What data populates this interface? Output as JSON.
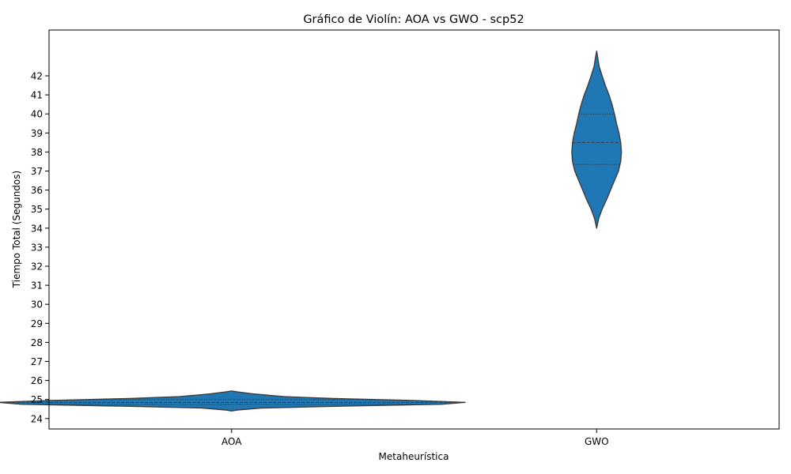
{
  "chart_data": {
    "type": "violin",
    "title": "Gráfico de Violín: AOA vs GWO - scp52",
    "xlabel": "Metaheurística",
    "ylabel": "Tiempo Total (Segundos)",
    "categories": [
      "AOA",
      "GWO"
    ],
    "yticks": [
      24,
      25,
      26,
      27,
      28,
      29,
      30,
      31,
      32,
      33,
      34,
      35,
      36,
      37,
      38,
      39,
      40,
      41,
      42
    ],
    "ylim": [
      23.5,
      45.2
    ],
    "grid": false,
    "violins": [
      {
        "name": "AOA",
        "color": "#1f77b4",
        "min": 24.4,
        "max": 25.45,
        "quartiles": [
          24.75,
          24.85,
          25.0
        ],
        "max_halfwidth": 0.8,
        "profile": [
          [
            24.4,
            0.0
          ],
          [
            24.45,
            0.02
          ],
          [
            24.55,
            0.1
          ],
          [
            24.65,
            0.38
          ],
          [
            24.75,
            0.72
          ],
          [
            24.85,
            0.8
          ],
          [
            24.95,
            0.62
          ],
          [
            25.05,
            0.35
          ],
          [
            25.15,
            0.18
          ],
          [
            25.3,
            0.07
          ],
          [
            25.4,
            0.02
          ],
          [
            25.45,
            0.0
          ]
        ]
      },
      {
        "name": "GWO",
        "color": "#1f77b4",
        "min": 34.0,
        "max": 43.3,
        "quartiles": [
          37.35,
          38.5,
          40.0
        ],
        "max_halfwidth": 0.068,
        "profile": [
          [
            34.0,
            0.0
          ],
          [
            34.5,
            0.08
          ],
          [
            35.0,
            0.22
          ],
          [
            35.5,
            0.4
          ],
          [
            36.0,
            0.56
          ],
          [
            36.5,
            0.72
          ],
          [
            37.0,
            0.88
          ],
          [
            37.5,
            0.97
          ],
          [
            38.0,
            1.0
          ],
          [
            38.5,
            0.97
          ],
          [
            39.0,
            0.9
          ],
          [
            39.5,
            0.8
          ],
          [
            40.0,
            0.72
          ],
          [
            40.5,
            0.62
          ],
          [
            41.0,
            0.5
          ],
          [
            41.5,
            0.35
          ],
          [
            42.0,
            0.22
          ],
          [
            42.5,
            0.1
          ],
          [
            43.0,
            0.04
          ],
          [
            43.3,
            0.0
          ]
        ]
      }
    ]
  }
}
